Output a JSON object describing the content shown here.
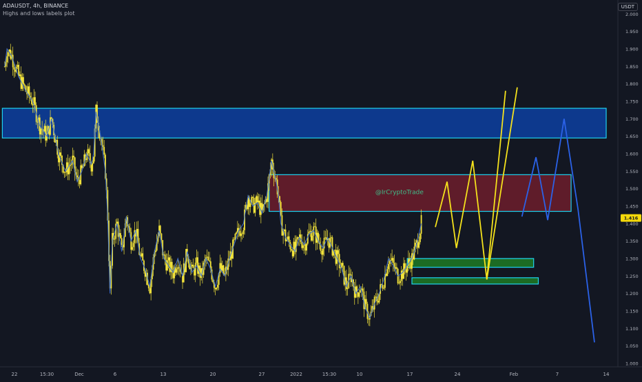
{
  "header": {
    "title": "ADAUSDT, 4h, BINANCE",
    "subtitle": "Highs and lows labels plot"
  },
  "currency_label": "USDT",
  "watermark": "@IrCryptoTrade",
  "price_badge": "1.416",
  "colors": {
    "background": "#131722",
    "candle": "#f5e63b",
    "price_line": "#3c6fd6",
    "yellow_path": "#f5e21c",
    "blue_path": "#2b62e8",
    "zone_blue_fill": "#0d3fa0",
    "zone_red_fill": "#7a1f2e",
    "zone_green_fill": "#1f7a25",
    "zone_border": "#1fd3f0"
  },
  "chart_data": {
    "type": "candlestick",
    "symbol": "ADAUSDT",
    "interval": "4h",
    "exchange": "BINANCE",
    "x_tick_labels": [
      "22",
      "15:30",
      "Dec",
      "6",
      "13",
      "20",
      "27",
      "2022",
      "15:30",
      "10",
      "17",
      "24",
      "Feb",
      "7",
      "14"
    ],
    "y_ticks": [
      1.0,
      1.05,
      1.1,
      1.15,
      1.2,
      1.25,
      1.3,
      1.35,
      1.4,
      1.45,
      1.5,
      1.55,
      1.6,
      1.65,
      1.7,
      1.75,
      1.8,
      1.85,
      1.9,
      1.95,
      2.0
    ],
    "y_tick_labels": [
      "1.000",
      "1.050",
      "1.100",
      "1.150",
      "1.200",
      "1.250",
      "1.300",
      "1.350",
      "1.400",
      "1.450",
      "1.500",
      "1.550",
      "1.600",
      "1.650",
      "1.700",
      "1.750",
      "1.800",
      "1.850",
      "1.900",
      "1.950",
      "2.000"
    ],
    "ylim": [
      0.99,
      2.04
    ],
    "last_price": 1.416,
    "price_path": [
      [
        0,
        1.85
      ],
      [
        1,
        1.9
      ],
      [
        3,
        1.88
      ],
      [
        6,
        1.82
      ],
      [
        9,
        1.78
      ],
      [
        12,
        1.75
      ],
      [
        15,
        1.68
      ],
      [
        18,
        1.65
      ],
      [
        20,
        1.7
      ],
      [
        23,
        1.6
      ],
      [
        26,
        1.55
      ],
      [
        29,
        1.58
      ],
      [
        31,
        1.52
      ],
      [
        33,
        1.55
      ],
      [
        35,
        1.6
      ],
      [
        37,
        1.57
      ],
      [
        38,
        1.6
      ],
      [
        39,
        1.72
      ],
      [
        41,
        1.65
      ],
      [
        43,
        1.55
      ],
      [
        44,
        1.42
      ],
      [
        45,
        1.2
      ],
      [
        46,
        1.35
      ],
      [
        48,
        1.4
      ],
      [
        50,
        1.32
      ],
      [
        52,
        1.42
      ],
      [
        54,
        1.35
      ],
      [
        56,
        1.38
      ],
      [
        58,
        1.3
      ],
      [
        60,
        1.27
      ],
      [
        62,
        1.22
      ],
      [
        64,
        1.32
      ],
      [
        66,
        1.38
      ],
      [
        68,
        1.3
      ],
      [
        70,
        1.28
      ],
      [
        72,
        1.26
      ],
      [
        74,
        1.3
      ],
      [
        76,
        1.25
      ],
      [
        78,
        1.32
      ],
      [
        80,
        1.26
      ],
      [
        82,
        1.28
      ],
      [
        84,
        1.25
      ],
      [
        86,
        1.3
      ],
      [
        88,
        1.27
      ],
      [
        90,
        1.22
      ],
      [
        92,
        1.27
      ],
      [
        94,
        1.25
      ],
      [
        96,
        1.3
      ],
      [
        98,
        1.34
      ],
      [
        100,
        1.38
      ],
      [
        102,
        1.4
      ],
      [
        104,
        1.48
      ],
      [
        106,
        1.45
      ],
      [
        108,
        1.46
      ],
      [
        110,
        1.43
      ],
      [
        112,
        1.48
      ],
      [
        114,
        1.58
      ],
      [
        116,
        1.52
      ],
      [
        117,
        1.48
      ],
      [
        118,
        1.4
      ],
      [
        120,
        1.36
      ],
      [
        122,
        1.34
      ],
      [
        124,
        1.32
      ],
      [
        126,
        1.36
      ],
      [
        128,
        1.34
      ],
      [
        130,
        1.37
      ],
      [
        132,
        1.38
      ],
      [
        134,
        1.35
      ],
      [
        136,
        1.33
      ],
      [
        138,
        1.36
      ],
      [
        140,
        1.33
      ],
      [
        142,
        1.3
      ],
      [
        144,
        1.27
      ],
      [
        146,
        1.22
      ],
      [
        148,
        1.25
      ],
      [
        150,
        1.2
      ],
      [
        152,
        1.22
      ],
      [
        154,
        1.16
      ],
      [
        156,
        1.13
      ],
      [
        158,
        1.17
      ],
      [
        160,
        1.2
      ],
      [
        162,
        1.24
      ],
      [
        164,
        1.3
      ],
      [
        166,
        1.28
      ],
      [
        168,
        1.25
      ],
      [
        170,
        1.26
      ],
      [
        172,
        1.28
      ],
      [
        174,
        1.3
      ],
      [
        176,
        1.34
      ],
      [
        178,
        1.4
      ]
    ],
    "zones": [
      {
        "name": "resistance-high",
        "x": [
          -1,
          257
        ],
        "y": [
          1.645,
          1.73
        ],
        "color": "blue"
      },
      {
        "name": "resistance-mid",
        "x": [
          113,
          242
        ],
        "y": [
          1.435,
          1.54
        ],
        "color": "red"
      },
      {
        "name": "support-upper",
        "x": [
          172,
          226
        ],
        "y": [
          1.275,
          1.3
        ],
        "color": "green"
      },
      {
        "name": "support-lower",
        "x": [
          174,
          228
        ],
        "y": [
          1.227,
          1.245
        ],
        "color": "green"
      }
    ],
    "projections": [
      {
        "name": "yellow-scenario",
        "color": "yellow",
        "points": [
          [
            184,
            1.39
          ],
          [
            189,
            1.52
          ],
          [
            193,
            1.33
          ],
          [
            200,
            1.58
          ],
          [
            206,
            1.24
          ],
          [
            214,
            1.78
          ]
        ]
      },
      {
        "name": "yellow-scenario-2",
        "color": "yellow",
        "points": [
          [
            206,
            1.24
          ],
          [
            219,
            1.79
          ]
        ]
      },
      {
        "name": "blue-scenario",
        "color": "blue",
        "points": [
          [
            221,
            1.42
          ],
          [
            227,
            1.59
          ],
          [
            232,
            1.41
          ],
          [
            239,
            1.7
          ],
          [
            245,
            1.44
          ],
          [
            252,
            1.06
          ]
        ]
      }
    ],
    "grid": false,
    "legend": "none"
  }
}
